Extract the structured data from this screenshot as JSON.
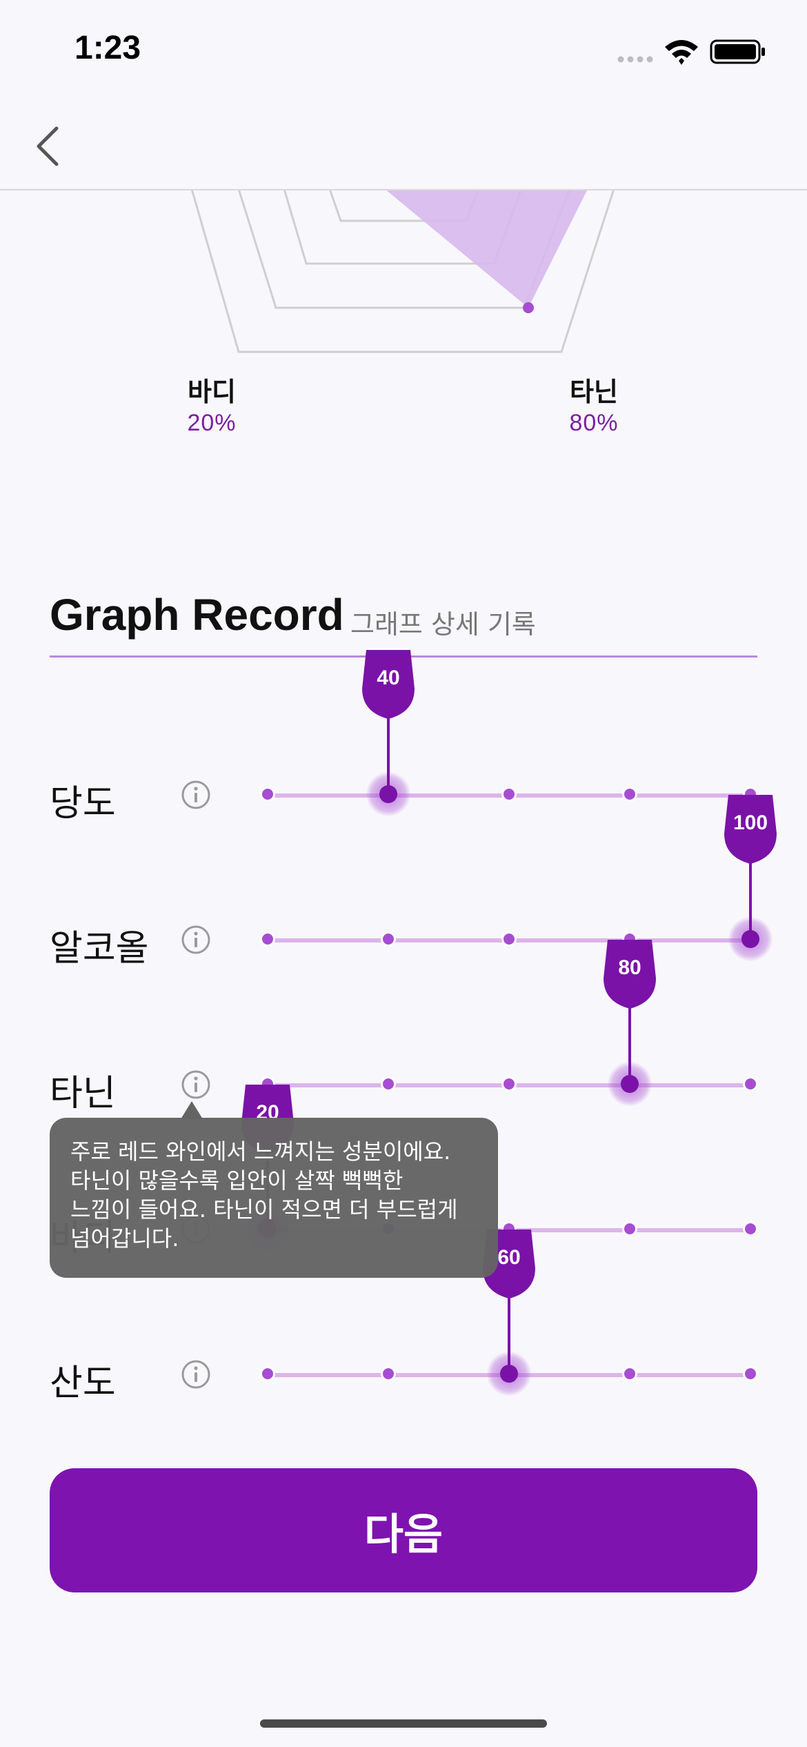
{
  "status_bar": {
    "time": "1:23",
    "icons": [
      "signal-icon",
      "wifi-icon",
      "battery-icon"
    ]
  },
  "nav": {
    "back_icon": "chevron-left-icon"
  },
  "radar": {
    "labels": [
      {
        "name": "바디",
        "value": "20%"
      },
      {
        "name": "타닌",
        "value": "80%"
      }
    ],
    "fill_color": "#d7b8ec",
    "point_color": "#a64dd1"
  },
  "section": {
    "title": "Graph Record",
    "subtitle": "그래프 상세 기록"
  },
  "sliders": [
    {
      "label": "당도",
      "value": "40",
      "level": 0.25,
      "active": true
    },
    {
      "label": "알코올",
      "value": "100",
      "level": 1.0,
      "active": true
    },
    {
      "label": "타닌",
      "value": "80",
      "level": 0.75,
      "active": true
    },
    {
      "label": "바디",
      "value": "20",
      "level": 0.0,
      "active": true
    },
    {
      "label": "산도",
      "value": "60",
      "level": 0.5,
      "active": true
    }
  ],
  "tooltip": {
    "lines": [
      "주로 레드 와인에서 느껴지는 성분이에요.",
      "타닌이 많을수록 입안이 살짝 뻑뻑한",
      "느낌이 들어요. 타닌이 적으면 더 부드럽게",
      "넘어갑니다."
    ]
  },
  "next_button": {
    "label": "다음"
  },
  "colors": {
    "accent": "#7e13b0",
    "track": "#dcb4ea",
    "tick": "#a64dd1",
    "background": "#f8f7fb"
  }
}
